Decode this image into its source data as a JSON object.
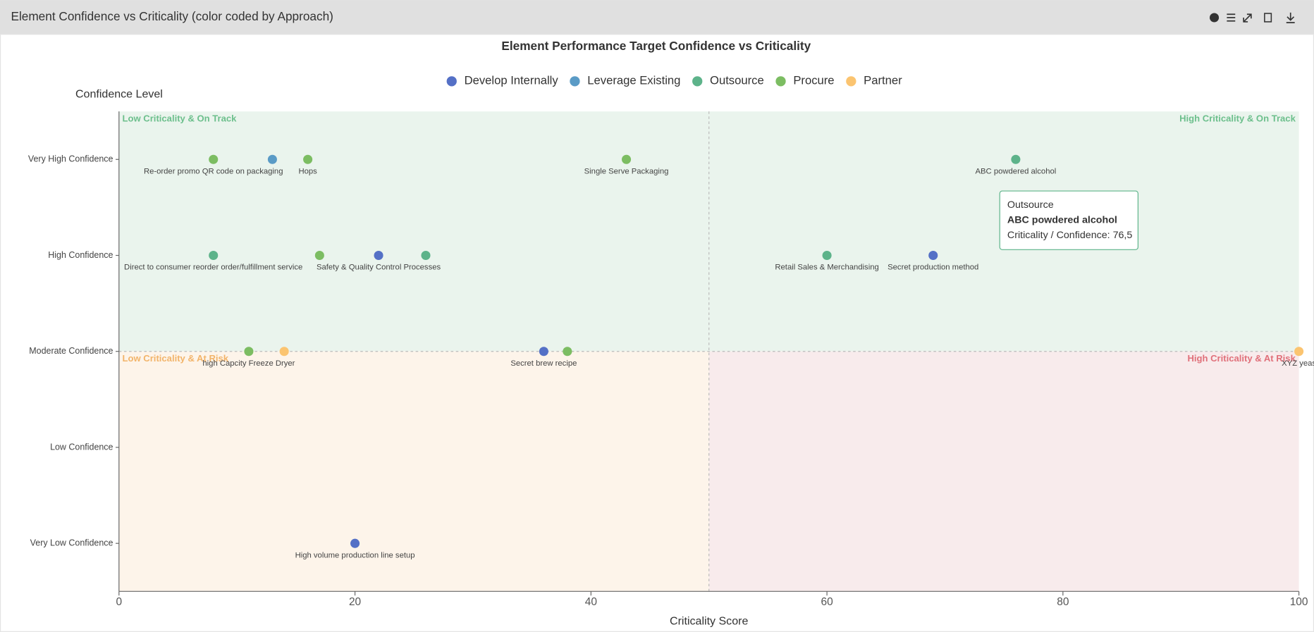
{
  "header": {
    "title": "Element Confidence vs Criticality (color coded by Approach)"
  },
  "chart_data": {
    "type": "scatter",
    "title": "Element Performance Target Confidence vs Criticality",
    "x_label": "Criticality Score",
    "y_label": "Confidence Level",
    "xlim": [
      0,
      100
    ],
    "xticks": [
      0,
      20,
      40,
      60,
      80,
      100
    ],
    "ylim": [
      0.5,
      5.5
    ],
    "yticks": [
      {
        "value": 1,
        "label": "Very Low Confidence"
      },
      {
        "value": 2,
        "label": "Low Confidence"
      },
      {
        "value": 3,
        "label": "Moderate Confidence"
      },
      {
        "value": 4,
        "label": "High Confidence"
      },
      {
        "value": 5,
        "label": "Very High Confidence"
      }
    ],
    "x_divider": 50,
    "y_divider": 3,
    "quadrants": {
      "top_left": {
        "label": "Low Criticality & On Track",
        "color": "#6cbf8c"
      },
      "top_right": {
        "label": "High Criticality & On Track",
        "color": "#6cbf8c"
      },
      "bottom_left": {
        "label": "Low Criticality & At Risk",
        "color": "#f2b46a"
      },
      "bottom_right": {
        "label": "High Criticality & At Risk",
        "color": "#e0707a"
      }
    },
    "series": [
      {
        "name": "Develop Internally",
        "color": "#5470c6",
        "x": [
          22,
          69,
          36,
          20
        ],
        "values": [
          4,
          4,
          3,
          1
        ],
        "labels": [
          "Safety & Quality Control Processes",
          "Secret production method",
          "Secret brew recipe",
          "High volume production line setup"
        ]
      },
      {
        "name": "Leverage Existing",
        "color": "#5a9bc6",
        "x": [
          13
        ],
        "values": [
          5
        ],
        "labels": [
          null
        ]
      },
      {
        "name": "Outsource",
        "color": "#5db38a",
        "x": [
          76,
          8,
          26,
          60
        ],
        "values": [
          5,
          4,
          4,
          4
        ],
        "labels": [
          "ABC powdered alcohol",
          "Direct to consumer reorder order/fulfillment service",
          null,
          "Retail Sales & Merchandising"
        ]
      },
      {
        "name": "Procure",
        "color": "#7cbd62",
        "x": [
          8,
          16,
          43,
          17,
          11,
          38
        ],
        "values": [
          5,
          5,
          5,
          4,
          3,
          3
        ],
        "labels": [
          "Re-order promo QR code on packaging",
          "Hops",
          "Single Serve Packaging",
          null,
          "high Capcity Freeze Dryer",
          null
        ]
      },
      {
        "name": "Partner",
        "color": "#fbc470",
        "x": [
          14,
          100
        ],
        "values": [
          3,
          3
        ],
        "labels": [
          null,
          "XYZ yeas"
        ]
      }
    ],
    "tooltip": {
      "series": "Outsource",
      "name": "ABC powdered alcohol",
      "detail": "Criticality / Confidence: 76,5"
    }
  }
}
